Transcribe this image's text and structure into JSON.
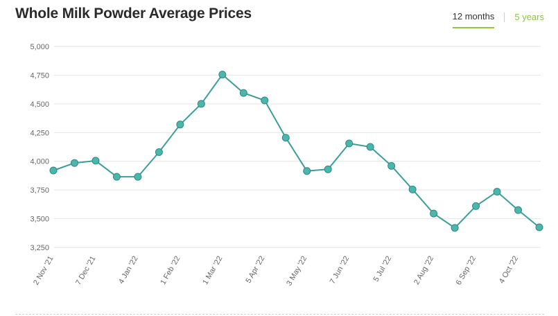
{
  "header": {
    "title": "Whole Milk Powder Average Prices"
  },
  "tabs": [
    {
      "label": "12 months",
      "active": true
    },
    {
      "label": "5 years",
      "active": false
    }
  ],
  "colors": {
    "line": "#3a9e99",
    "marker": "#4db6ac",
    "marker_stroke": "#2f8a84",
    "grid": "#e2e2e2",
    "tab_accent": "#8dc63f"
  },
  "chart_data": {
    "type": "line",
    "title": "Whole Milk Powder Average Prices",
    "xlabel": "",
    "ylabel": "",
    "ylim": [
      3250,
      5000
    ],
    "y_ticks": [
      5000,
      4750,
      4500,
      4250,
      4000,
      3750,
      3500,
      3250
    ],
    "y_tick_labels": [
      "5,000",
      "4,750",
      "4,500",
      "4,250",
      "4,000",
      "3,750",
      "3,500",
      "3,250"
    ],
    "x_tick_labels": [
      "2 Nov '21",
      "7 Dec '21",
      "4 Jan '22",
      "1 Feb '22",
      "1 Mar '22",
      "5 Apr '22",
      "3 May '22",
      "7 Jun '22",
      "5 Jul '22",
      "2 Aug '22",
      "6 Sep '22",
      "4 Oct '22"
    ],
    "x_tick_indices": [
      0,
      2,
      4,
      6,
      8,
      10,
      12,
      14,
      16,
      18,
      20,
      22
    ],
    "grid": true,
    "series": [
      {
        "values": [
          3920,
          3985,
          4005,
          3865,
          3865,
          4080,
          4320,
          4500,
          4755,
          4595,
          4530,
          4205,
          3915,
          3930,
          4155,
          4125,
          3960,
          3755,
          3545,
          3420,
          3610,
          3735,
          3575,
          3425
        ]
      }
    ]
  }
}
